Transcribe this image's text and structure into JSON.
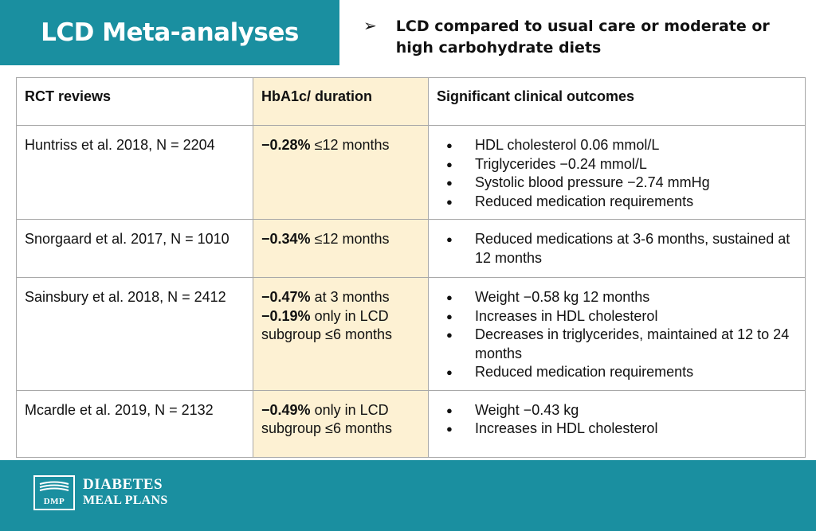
{
  "header": {
    "title": "LCD Meta-analyses",
    "bullet_icon": "arrowhead-icon",
    "subtitle": "LCD compared to usual care or moderate or high carbohydrate diets"
  },
  "colors": {
    "brand": "#1a8fa0",
    "highlight_column": "#fdf1d3"
  },
  "table": {
    "headers": [
      "RCT reviews",
      "HbA1c/ duration",
      "Significant clinical outcomes"
    ],
    "rows": [
      {
        "review": "Huntriss et al. 2018, N = 2204",
        "hba1c": [
          {
            "bold": "−0.28%",
            "text": " ≤12 months"
          }
        ],
        "outcomes": [
          "HDL cholesterol 0.06 mmol/L",
          "Triglycerides −0.24 mmol/L",
          "Systolic blood pressure −2.74 mmHg",
          "Reduced medication requirements"
        ]
      },
      {
        "review": "Snorgaard et al. 2017, N = 1010",
        "hba1c": [
          {
            "bold": "−0.34%",
            "text": " ≤12 months"
          }
        ],
        "outcomes": [
          "Reduced medications at 3-6 months, sustained at 12 months"
        ]
      },
      {
        "review": "Sainsbury et al. 2018, N = 2412",
        "hba1c": [
          {
            "bold": "−0.47%",
            "text": " at 3 months"
          },
          {
            "bold": "−0.19%",
            "text": " only in LCD subgroup ≤6 months"
          }
        ],
        "outcomes": [
          "Weight −0.58 kg 12 months",
          "Increases in HDL cholesterol",
          "Decreases in triglycerides, maintained at 12 to 24 months",
          "Reduced medication requirements"
        ]
      },
      {
        "review": "Mcardle et al. 2019, N = 2132",
        "hba1c": [
          {
            "bold": "−0.49%",
            "text": " only in LCD subgroup ≤6 months"
          }
        ],
        "outcomes": [
          "Weight −0.43 kg",
          "Increases in HDL cholesterol"
        ]
      }
    ]
  },
  "footer": {
    "logo_abbr": "DMP",
    "logo_line1": "DIABETES",
    "logo_line2": "MEAL PLANS"
  }
}
